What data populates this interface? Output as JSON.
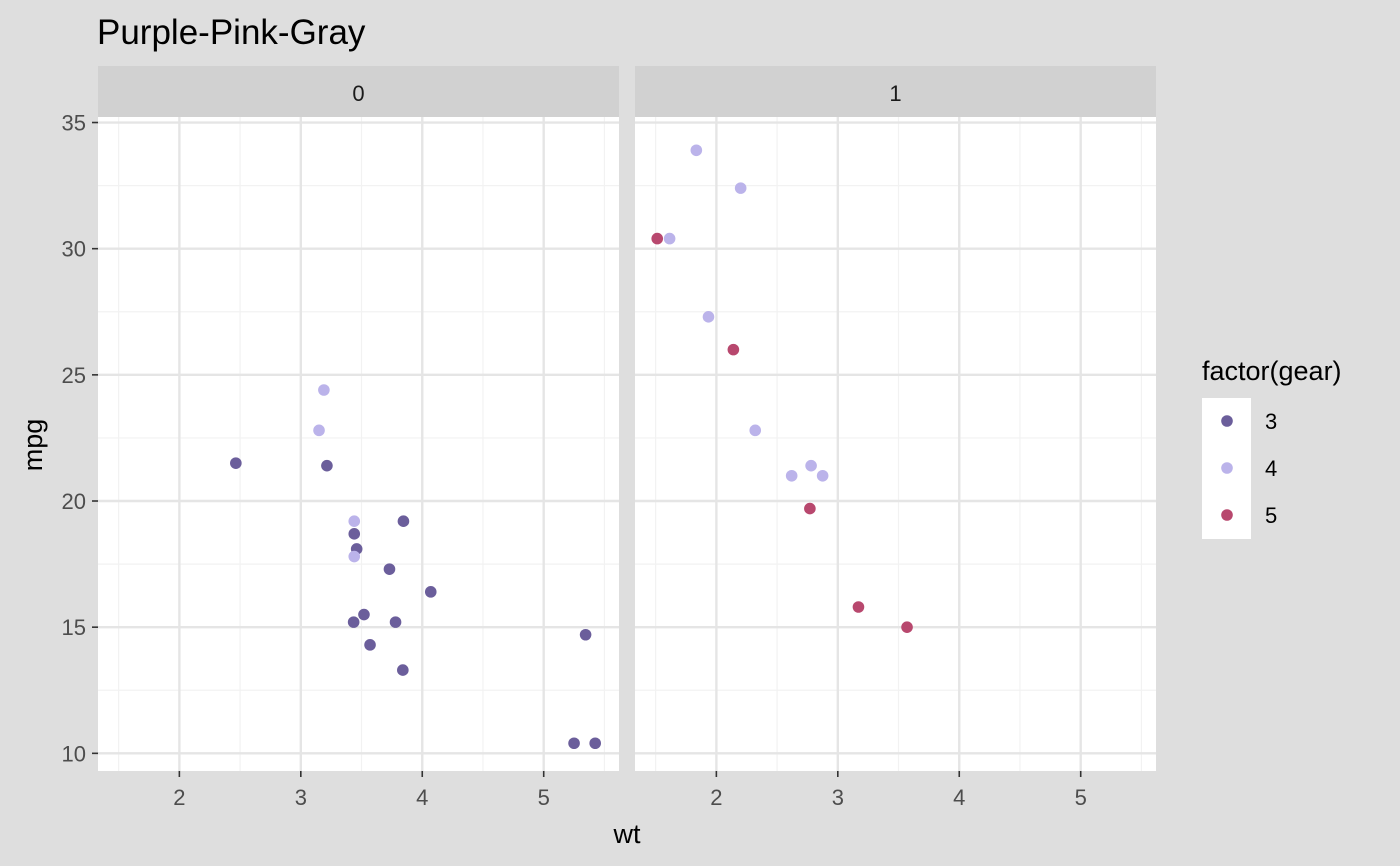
{
  "chart_data": {
    "type": "scatter",
    "title": "Purple-Pink-Gray",
    "xlabel": "wt",
    "ylabel": "mpg",
    "xlim": [
      1.33,
      5.62
    ],
    "ylim": [
      9.3,
      35.1
    ],
    "x_ticks": [
      2,
      3,
      4,
      5
    ],
    "y_ticks": [
      10,
      15,
      20,
      25,
      30,
      35
    ],
    "grid": true,
    "facet_variable": "am",
    "facets": [
      "0",
      "1"
    ],
    "legend": {
      "title": "factor(gear)",
      "position": "right",
      "entries": [
        {
          "label": "3",
          "color": "#6b5e9b"
        },
        {
          "label": "4",
          "color": "#bbb3ea"
        },
        {
          "label": "5",
          "color": "#b8486e"
        }
      ]
    },
    "series": [
      {
        "name": "3",
        "color": "#6b5e9b",
        "points": [
          {
            "facet": "0",
            "x": 2.465,
            "y": 21.5
          },
          {
            "facet": "0",
            "x": 3.215,
            "y": 21.4
          },
          {
            "facet": "0",
            "x": 3.44,
            "y": 18.7
          },
          {
            "facet": "0",
            "x": 3.46,
            "y": 18.1
          },
          {
            "facet": "0",
            "x": 3.57,
            "y": 14.3
          },
          {
            "facet": "0",
            "x": 4.07,
            "y": 16.4
          },
          {
            "facet": "0",
            "x": 3.73,
            "y": 17.3
          },
          {
            "facet": "0",
            "x": 3.78,
            "y": 15.2
          },
          {
            "facet": "0",
            "x": 5.25,
            "y": 10.4
          },
          {
            "facet": "0",
            "x": 5.424,
            "y": 10.4
          },
          {
            "facet": "0",
            "x": 5.345,
            "y": 14.7
          },
          {
            "facet": "0",
            "x": 3.52,
            "y": 15.5
          },
          {
            "facet": "0",
            "x": 3.435,
            "y": 15.2
          },
          {
            "facet": "0",
            "x": 3.84,
            "y": 13.3
          },
          {
            "facet": "0",
            "x": 3.845,
            "y": 19.2
          }
        ]
      },
      {
        "name": "4",
        "color": "#bbb3ea",
        "points": [
          {
            "facet": "0",
            "x": 3.19,
            "y": 24.4
          },
          {
            "facet": "0",
            "x": 3.15,
            "y": 22.8
          },
          {
            "facet": "0",
            "x": 3.44,
            "y": 19.2
          },
          {
            "facet": "0",
            "x": 3.44,
            "y": 17.8
          },
          {
            "facet": "1",
            "x": 2.62,
            "y": 21.0
          },
          {
            "facet": "1",
            "x": 2.875,
            "y": 21.0
          },
          {
            "facet": "1",
            "x": 2.32,
            "y": 22.8
          },
          {
            "facet": "1",
            "x": 2.2,
            "y": 32.4
          },
          {
            "facet": "1",
            "x": 1.615,
            "y": 30.4
          },
          {
            "facet": "1",
            "x": 1.835,
            "y": 33.9
          },
          {
            "facet": "1",
            "x": 1.935,
            "y": 27.3
          },
          {
            "facet": "1",
            "x": 2.78,
            "y": 21.4
          }
        ]
      },
      {
        "name": "5",
        "color": "#b8486e",
        "points": [
          {
            "facet": "1",
            "x": 2.14,
            "y": 26.0
          },
          {
            "facet": "1",
            "x": 1.513,
            "y": 30.4
          },
          {
            "facet": "1",
            "x": 3.17,
            "y": 15.8
          },
          {
            "facet": "1",
            "x": 2.77,
            "y": 19.7
          },
          {
            "facet": "1",
            "x": 3.57,
            "y": 15.0
          }
        ]
      }
    ]
  }
}
